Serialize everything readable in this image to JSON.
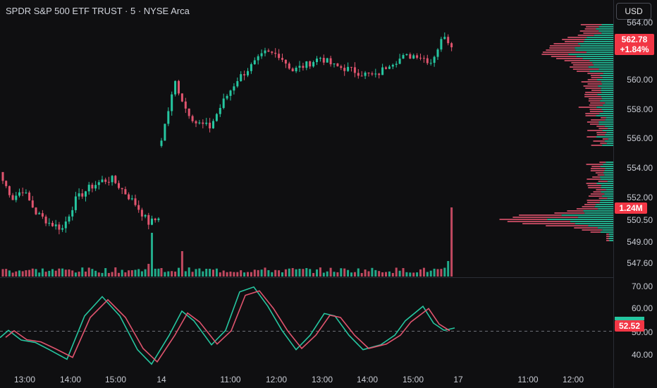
{
  "header": {
    "title": "SPDR S&P 500 ETF TRUST · 5 · NYSE Arca"
  },
  "toolbar": {
    "currency_label": "USD"
  },
  "price_axis": {
    "ticks": [
      "564.00",
      "560.00",
      "558.00",
      "556.00",
      "554.00",
      "552.00",
      "550.50",
      "549.00",
      "547.60"
    ]
  },
  "osc_axis": {
    "ticks": [
      "70.00",
      "60.00",
      "50.00",
      "40.00"
    ]
  },
  "time_axis": {
    "ticks": [
      "13:00",
      "14:00",
      "15:00",
      "14",
      "11:00",
      "12:00",
      "13:00",
      "14:00",
      "15:00",
      "17",
      "11:00",
      "12:00"
    ]
  },
  "badges": {
    "last_price": "562.78",
    "change_pct": "+1.84%",
    "volume": "1.24M",
    "osc_value": "52.52"
  },
  "colors": {
    "up": "#26c6a0",
    "down": "#e0546e",
    "background": "#0f0f11",
    "badge": "#f23645"
  },
  "chart_data": {
    "type": "candlestick",
    "title": "SPDR S&P 500 ETF TRUST · 5 · NYSE Arca",
    "interval": "5",
    "price_range": [
      547.0,
      564.6
    ],
    "last_price": 562.78,
    "change_pct": "+1.84%",
    "last_volume": "1.24M",
    "sessions": [
      {
        "label": "day 1 (ends at 14)",
        "open": 553.8,
        "low": 550.2,
        "high": 554.6,
        "close": 551.0
      },
      {
        "label": "day 2 (14, ends at 17)",
        "open": 556.2,
        "low": 556.0,
        "high": 564.1,
        "close": 562.78
      }
    ],
    "oscillator": {
      "range": [
        36,
        72
      ],
      "last_value": 52.52,
      "reference_level": 50
    }
  }
}
